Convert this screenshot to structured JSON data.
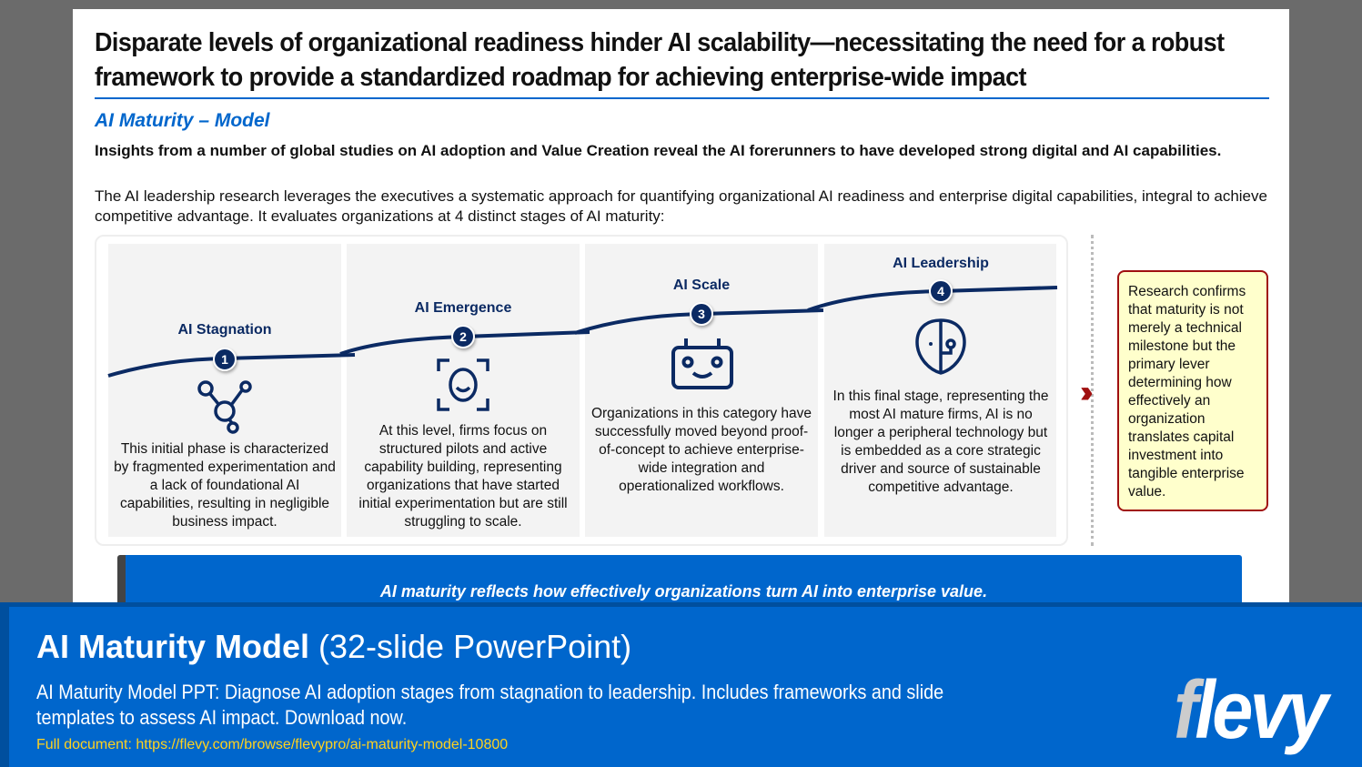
{
  "title": "Disparate levels of organizational readiness hinder AI scalability—necessitating the need for a robust framework to provide a standardized roadmap for achieving enterprise-wide impact",
  "subtitle": "AI Maturity – Model",
  "intro_bold": "Insights from a number of global studies on AI adoption and Value Creation reveal the AI forerunners to have developed strong digital and AI capabilities.",
  "intro": "The AI leadership research leverages the executives a systematic approach for quantifying organizational AI readiness and enterprise digital capabilities, integral to achieve competitive advantage. It evaluates organizations at 4 distinct stages of AI maturity:",
  "stages": [
    {
      "number": "1",
      "label": "AI Stagnation",
      "icon": "molecule-network-icon",
      "text": "This initial phase is characterized by fragmented experimentation and a lack of foundational AI capabilities, resulting in negligible business impact."
    },
    {
      "number": "2",
      "label": "AI Emergence",
      "icon": "face-scan-icon",
      "text": "At this level, firms focus on structured pilots and active capability building, representing organizations that have started initial experimentation but are still struggling to scale."
    },
    {
      "number": "3",
      "label": "AI Scale",
      "icon": "robot-face-icon",
      "text": "Organizations in this category have successfully moved beyond proof-of-concept to achieve enterprise-wide integration and operationalized workflows."
    },
    {
      "number": "4",
      "label": "AI Leadership",
      "icon": "ai-head-icon",
      "text": "In this final stage, representing the most AI mature firms, AI is no longer a peripheral technology but is embedded as a core strategic driver and source of sustainable competitive advantage."
    }
  ],
  "callout": "Research confirms that maturity is not merely a technical milestone but the primary lever determining how effectively an organization translates capital investment into tangible enterprise value.",
  "banner": "AI maturity reflects how effectively organizations turn AI into enterprise value.",
  "footer": {
    "title_bold": "AI Maturity Model",
    "title_rest": " (32-slide PowerPoint)",
    "description": "AI Maturity Model PPT: Diagnose AI adoption stages from stagnation to leadership. Includes frameworks and slide templates to assess AI impact. Download now.",
    "link": "Full document: https://flevy.com/browse/flevypro/ai-maturity-model-10800",
    "logo": "flevy"
  },
  "colors": {
    "navy": "#0b2a63",
    "blue": "#0066cc",
    "callout_bg": "#ffffcc",
    "callout_border": "#a01010",
    "link": "#ffd21f"
  }
}
